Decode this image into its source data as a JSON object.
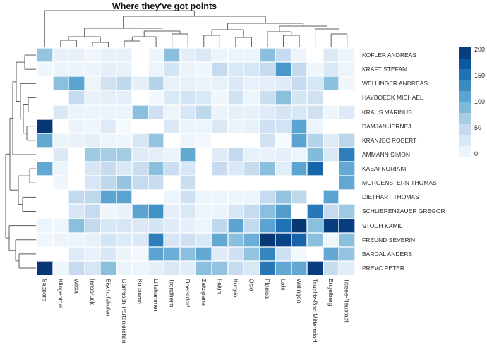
{
  "chart_data": {
    "type": "heatmap",
    "title": "Where they've got points",
    "rows": [
      "KOFLER ANDREAS",
      "KRAFT STEFAN",
      "WELLINGER ANDREAS",
      "HAYBOECK MICHAEL",
      "KRAUS MARINUS",
      "DAMJAN JERNEJ",
      "KRANJEC ROBERT",
      "AMMANN SIMON",
      "KASAI NORIAKI",
      "MORGENSTERN THOMAS",
      "DIETHART THOMAS",
      "SCHLIERENZAUER GREGOR",
      "STOCH KAMIL",
      "FREUND SEVERIN",
      "BARDAL ANDERS",
      "PREVC PETER"
    ],
    "columns": [
      "Sapporo",
      "Klingenthal",
      "Wisla",
      "Innsbruck",
      "Bischofshofen",
      "Garmisch-Partenkirchen",
      "Kuusamo",
      "Lillehammer",
      "Trondheim",
      "Oberstdorf",
      "Zakopane",
      "Falun",
      "Kuopio",
      "Oslo",
      "Planica",
      "Lahti",
      "Willingen",
      "Tauplitz-Bad Mitterndorf",
      "Engelberg",
      "Titisee-Neustadt"
    ],
    "values": [
      [
        80,
        15,
        15,
        8,
        15,
        15,
        0,
        10,
        85,
        20,
        30,
        10,
        12,
        12,
        85,
        50,
        10,
        0,
        28,
        10
      ],
      [
        8,
        12,
        12,
        12,
        18,
        15,
        0,
        10,
        35,
        12,
        8,
        50,
        30,
        33,
        50,
        120,
        52,
        8,
        30,
        10
      ],
      [
        0,
        85,
        110,
        10,
        40,
        55,
        18,
        60,
        15,
        15,
        12,
        16,
        28,
        14,
        18,
        24,
        50,
        33,
        85,
        8
      ],
      [
        0,
        0,
        50,
        15,
        18,
        18,
        0,
        5,
        30,
        38,
        30,
        8,
        40,
        10,
        44,
        85,
        35,
        40,
        0,
        0
      ],
      [
        0,
        30,
        12,
        10,
        12,
        12,
        85,
        42,
        10,
        33,
        55,
        12,
        18,
        16,
        24,
        35,
        32,
        40,
        10,
        26
      ],
      [
        195,
        0,
        12,
        8,
        25,
        3,
        0,
        0,
        28,
        12,
        10,
        30,
        12,
        16,
        42,
        38,
        110,
        10,
        0,
        0
      ],
      [
        105,
        12,
        14,
        18,
        10,
        8,
        32,
        80,
        0,
        10,
        6,
        0,
        0,
        0,
        40,
        2,
        110,
        60,
        24,
        58
      ],
      [
        0,
        28,
        0,
        75,
        70,
        72,
        25,
        20,
        12,
        105,
        0,
        24,
        52,
        16,
        14,
        18,
        10,
        88,
        30,
        140
      ],
      [
        105,
        10,
        0,
        33,
        48,
        30,
        45,
        85,
        45,
        32,
        0,
        50,
        30,
        48,
        85,
        22,
        110,
        160,
        0,
        105
      ],
      [
        0,
        8,
        0,
        33,
        55,
        80,
        50,
        48,
        0,
        44,
        0,
        0,
        0,
        0,
        0,
        0,
        0,
        0,
        0,
        105
      ],
      [
        0,
        0,
        52,
        55,
        110,
        110,
        0,
        0,
        10,
        42,
        10,
        10,
        10,
        10,
        50,
        80,
        55,
        0,
        110,
        0
      ],
      [
        0,
        0,
        32,
        50,
        8,
        14,
        110,
        125,
        18,
        30,
        10,
        12,
        33,
        50,
        85,
        115,
        0,
        145,
        50,
        75
      ],
      [
        10,
        8,
        85,
        52,
        32,
        33,
        28,
        35,
        24,
        18,
        10,
        55,
        110,
        52,
        110,
        150,
        195,
        85,
        190,
        190
      ],
      [
        8,
        10,
        12,
        16,
        35,
        26,
        28,
        140,
        33,
        42,
        30,
        105,
        85,
        100,
        195,
        185,
        160,
        85,
        8,
        85
      ],
      [
        0,
        0,
        26,
        14,
        32,
        12,
        4,
        110,
        100,
        85,
        105,
        24,
        42,
        80,
        135,
        42,
        5,
        0,
        105,
        80
      ],
      [
        195,
        8,
        50,
        33,
        85,
        12,
        10,
        18,
        30,
        22,
        85,
        80,
        50,
        30,
        145,
        105,
        105,
        190,
        48,
        22
      ]
    ],
    "colorscale": {
      "name": "Blues",
      "min": 0,
      "max": 200,
      "stops": [
        {
          "v": 0,
          "c": "#f7fbff"
        },
        {
          "v": 25,
          "c": "#deebf7"
        },
        {
          "v": 50,
          "c": "#c6dbef"
        },
        {
          "v": 75,
          "c": "#9ecae1"
        },
        {
          "v": 100,
          "c": "#6baed6"
        },
        {
          "v": 125,
          "c": "#4292c6"
        },
        {
          "v": 150,
          "c": "#2171b5"
        },
        {
          "v": 175,
          "c": "#08519c"
        },
        {
          "v": 200,
          "c": "#08306b"
        }
      ]
    },
    "legend": {
      "ticks": [
        200,
        150,
        100,
        50,
        0
      ],
      "position": "right",
      "segments": 10
    },
    "row_dendrogram": true,
    "col_dendrogram": true,
    "dendrogram_line_color": "#5f5f5f"
  }
}
